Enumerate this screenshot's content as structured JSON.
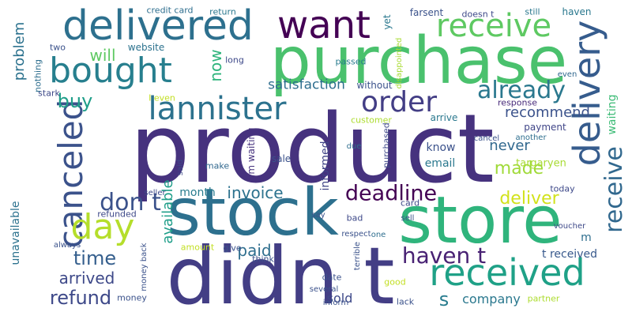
{
  "words": [
    {
      "text": "product",
      "color": "#46327e",
      "vertical": false
    },
    {
      "text": "purchase",
      "color": "#4ac16d",
      "vertical": false
    },
    {
      "text": "didn t",
      "color": "#433e85",
      "vertical": false
    },
    {
      "text": "stock",
      "color": "#2d708e",
      "vertical": false
    },
    {
      "text": "store",
      "color": "#2fb47c",
      "vertical": false
    },
    {
      "text": "delivered",
      "color": "#2d708e",
      "vertical": false
    },
    {
      "text": "delivery",
      "color": "#365c8d",
      "vertical": true
    },
    {
      "text": "received",
      "color": "#1fa187",
      "vertical": false
    },
    {
      "text": "canceled",
      "color": "#3b528b",
      "vertical": true
    },
    {
      "text": "lannister",
      "color": "#2c728e",
      "vertical": false
    },
    {
      "text": "bought",
      "color": "#277f8e",
      "vertical": false
    },
    {
      "text": "want",
      "color": "#440154",
      "vertical": false
    },
    {
      "text": "receive",
      "color": "#5ec962",
      "vertical": false
    },
    {
      "text": "order",
      "color": "#433e85",
      "vertical": false
    },
    {
      "text": "day",
      "color": "#b5de2b",
      "vertical": false
    },
    {
      "text": "already",
      "color": "#2a788e",
      "vertical": false
    },
    {
      "text": "deadline",
      "color": "#440154",
      "vertical": false
    },
    {
      "text": "don t",
      "color": "#3b528b",
      "vertical": false
    },
    {
      "text": "haven t",
      "color": "#482173",
      "vertical": false
    },
    {
      "text": "refund",
      "color": "#3e4989",
      "vertical": false
    },
    {
      "text": "arrived",
      "color": "#3e4989",
      "vertical": false
    },
    {
      "text": "receive",
      "color": "#31688e",
      "vertical": true
    },
    {
      "text": "made",
      "color": "#a0da39",
      "vertical": false
    },
    {
      "text": "deliver",
      "color": "#d2e21b",
      "vertical": false
    },
    {
      "text": "buy",
      "color": "#1f9e89",
      "vertical": false
    },
    {
      "text": "time",
      "color": "#355f8d",
      "vertical": false
    },
    {
      "text": "will",
      "color": "#5ec962",
      "vertical": false
    },
    {
      "text": "now",
      "color": "#2fb47c",
      "vertical": true
    },
    {
      "text": "available",
      "color": "#1f9e89",
      "vertical": true
    },
    {
      "text": "invoice",
      "color": "#2c728e",
      "vertical": false
    },
    {
      "text": "paid",
      "color": "#2e6e8e",
      "vertical": false
    },
    {
      "text": "satisfaction",
      "color": "#2e6e8e",
      "vertical": false
    },
    {
      "text": "recommend",
      "color": "#3b528b",
      "vertical": false
    },
    {
      "text": "never",
      "color": "#31688e",
      "vertical": false
    },
    {
      "text": "company",
      "color": "#2a788e",
      "vertical": false
    },
    {
      "text": "unavailable",
      "color": "#2c728e",
      "vertical": true
    },
    {
      "text": "problem",
      "color": "#2c728e",
      "vertical": true
    },
    {
      "text": "waiting",
      "color": "#3bbb75",
      "vertical": true
    },
    {
      "text": "know",
      "color": "#3b528b",
      "vertical": false
    },
    {
      "text": "email",
      "color": "#2a788e",
      "vertical": false
    },
    {
      "text": "s",
      "color": "#287c8e",
      "vertical": false
    },
    {
      "text": "sold",
      "color": "#3e4989",
      "vertical": false
    },
    {
      "text": "t received",
      "color": "#38598c",
      "vertical": false
    },
    {
      "text": "month",
      "color": "#287c8e",
      "vertical": false
    },
    {
      "text": "website",
      "color": "#2c728e",
      "vertical": false
    },
    {
      "text": "still",
      "color": "#2a788e",
      "vertical": false
    },
    {
      "text": "haven",
      "color": "#2a788e",
      "vertical": false
    },
    {
      "text": "customer",
      "color": "#addc30",
      "vertical": false
    },
    {
      "text": "payment",
      "color": "#404688",
      "vertical": false
    },
    {
      "text": "informed",
      "color": "#414487",
      "vertical": true
    },
    {
      "text": "targaryen",
      "color": "#a8db34",
      "vertical": false
    },
    {
      "text": "m waiting",
      "color": "#46327e",
      "vertical": true
    },
    {
      "text": "arrive",
      "color": "#2a788e",
      "vertical": false
    },
    {
      "text": "response",
      "color": "#472a7a",
      "vertical": false
    },
    {
      "text": "refunded",
      "color": "#3e4989",
      "vertical": false
    },
    {
      "text": "card",
      "color": "#3e4989",
      "vertical": false
    },
    {
      "text": "stark",
      "color": "#3e4989",
      "vertical": false
    },
    {
      "text": "I even",
      "color": "#c2df23",
      "vertical": false
    },
    {
      "text": "sale",
      "color": "#3b528b",
      "vertical": false
    },
    {
      "text": "passed",
      "color": "#287c8e",
      "vertical": false
    },
    {
      "text": "without",
      "color": "#3b528b",
      "vertical": false
    },
    {
      "text": "credit card",
      "color": "#2e6e8e",
      "vertical": false
    },
    {
      "text": "return",
      "color": "#2a788e",
      "vertical": false
    },
    {
      "text": "farsent",
      "color": "#3b528b",
      "vertical": false
    },
    {
      "text": "doesn t",
      "color": "#3e4989",
      "vertical": false
    },
    {
      "text": "yet",
      "color": "#2a788e",
      "vertical": true
    },
    {
      "text": "long",
      "color": "#3e4989",
      "vertical": false
    },
    {
      "text": "disappointed",
      "color": "#a8db34",
      "vertical": true
    },
    {
      "text": "two",
      "color": "#3b528b",
      "vertical": false
    },
    {
      "text": "nothing",
      "color": "#2e6e8e",
      "vertical": true
    },
    {
      "text": "even",
      "color": "#31688e",
      "vertical": false
    },
    {
      "text": "due",
      "color": "#2e6e8e",
      "vertical": false
    },
    {
      "text": "cancel",
      "color": "#3b528b",
      "vertical": false
    },
    {
      "text": "another",
      "color": "#2e6e8e",
      "vertical": false
    },
    {
      "text": "purchased",
      "color": "#3e4989",
      "vertical": true
    },
    {
      "text": "make",
      "color": "#31688e",
      "vertical": false
    },
    {
      "text": "said",
      "color": "#3e4989",
      "vertical": true
    },
    {
      "text": "seller",
      "color": "#3e4989",
      "vertical": false
    },
    {
      "text": "today",
      "color": "#3e4989",
      "vertical": false
    },
    {
      "text": "give",
      "color": "#3b528b",
      "vertical": false
    },
    {
      "text": "amount",
      "color": "#c2df23",
      "vertical": false
    },
    {
      "text": "money back",
      "color": "#3b528b",
      "vertical": true
    },
    {
      "text": "always",
      "color": "#3b528b",
      "vertical": false
    },
    {
      "text": "think",
      "color": "#3b528b",
      "vertical": false
    },
    {
      "text": "terrible",
      "color": "#3b528b",
      "vertical": true
    },
    {
      "text": "bad",
      "color": "#3e4989",
      "vertical": false
    },
    {
      "text": "respect",
      "color": "#3b528b",
      "vertical": false
    },
    {
      "text": "sell",
      "color": "#3b528b",
      "vertical": false
    },
    {
      "text": "say",
      "color": "#3b528b",
      "vertical": false
    },
    {
      "text": "one",
      "color": "#2e6e8e",
      "vertical": false
    },
    {
      "text": "voucher",
      "color": "#3e4989",
      "vertical": false
    },
    {
      "text": "m",
      "color": "#2e6e8e",
      "vertical": false
    },
    {
      "text": "good",
      "color": "#c2df23",
      "vertical": false
    },
    {
      "text": "date",
      "color": "#3b528b",
      "vertical": false
    },
    {
      "text": "several",
      "color": "#3b528b",
      "vertical": false
    },
    {
      "text": "inform",
      "color": "#3b528b",
      "vertical": false
    },
    {
      "text": "lack",
      "color": "#3b528b",
      "vertical": false
    },
    {
      "text": "partner",
      "color": "#addc30",
      "vertical": false
    },
    {
      "text": "money",
      "color": "#3b528b",
      "vertical": false
    }
  ]
}
